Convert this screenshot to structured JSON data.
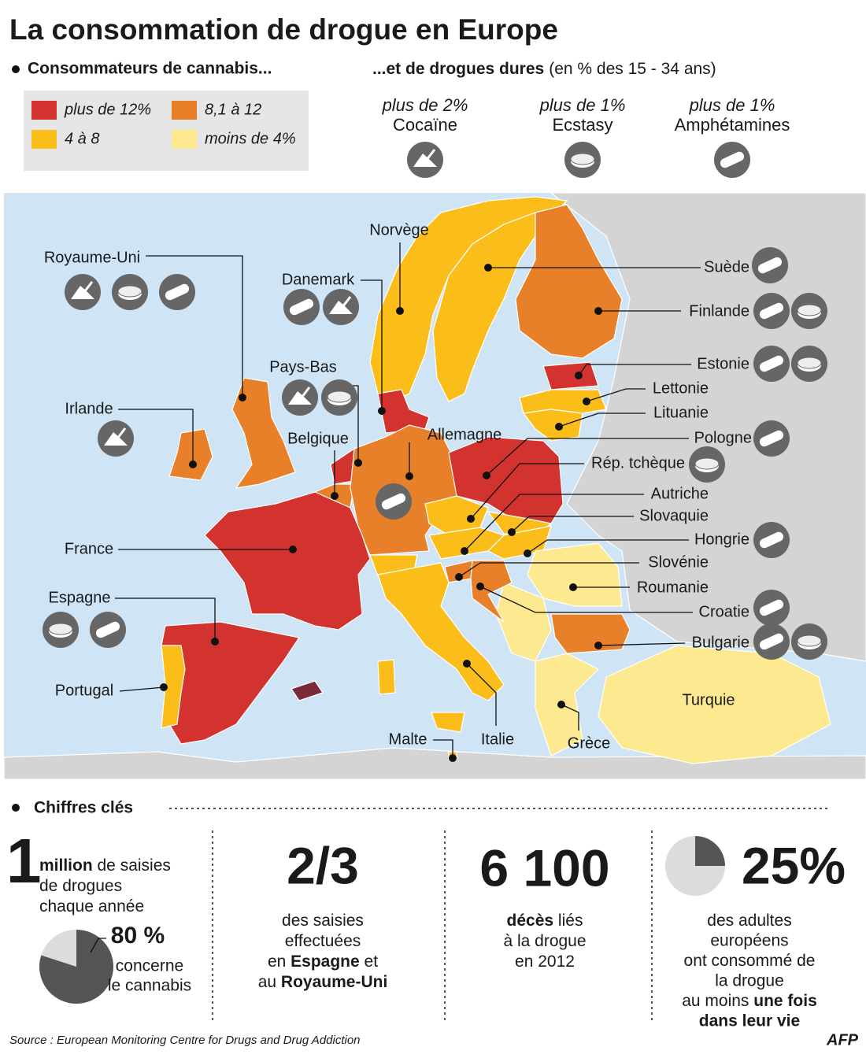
{
  "title": "La consommation de drogue en Europe",
  "cannabis_heading": "Consommateurs de cannabis...",
  "hard_drugs_heading": {
    "bold": "...et de drogues dures",
    "note": "(en % des 15 - 34 ans)"
  },
  "legend": [
    {
      "label": "plus de 12%",
      "color": "#d2332e"
    },
    {
      "label": "8,1 à 12",
      "color": "#e8802a"
    },
    {
      "label": "4 à 8",
      "color": "#fbbd1a"
    },
    {
      "label": "moins de 4%",
      "color": "#fde98f"
    }
  ],
  "drugs": [
    {
      "threshold": "plus de 2%",
      "name": "Cocaïne"
    },
    {
      "threshold": "plus de 1%",
      "name": "Ecstasy"
    },
    {
      "threshold": "plus de 1%",
      "name": "Amphétamines"
    }
  ],
  "countries": [
    {
      "name": "Royaume-Uni"
    },
    {
      "name": "Irlande"
    },
    {
      "name": "Norvège"
    },
    {
      "name": "Danemark"
    },
    {
      "name": "Pays-Bas"
    },
    {
      "name": "Belgique"
    },
    {
      "name": "Allemagne"
    },
    {
      "name": "Suède"
    },
    {
      "name": "Finlande"
    },
    {
      "name": "Estonie"
    },
    {
      "name": "Lettonie"
    },
    {
      "name": "Lituanie"
    },
    {
      "name": "Pologne"
    },
    {
      "name": "Rép. tchèque"
    },
    {
      "name": "Autriche"
    },
    {
      "name": "Slovaquie"
    },
    {
      "name": "Hongrie"
    },
    {
      "name": "Slovénie"
    },
    {
      "name": "Roumanie"
    },
    {
      "name": "Croatie"
    },
    {
      "name": "Bulgarie"
    },
    {
      "name": "Turquie"
    },
    {
      "name": "Grèce"
    },
    {
      "name": "Italie"
    },
    {
      "name": "Malte"
    },
    {
      "name": "France"
    },
    {
      "name": "Espagne"
    },
    {
      "name": "Portugal"
    }
  ],
  "key_figures": {
    "heading": "Chiffres clés",
    "figures": [
      {
        "number": "1",
        "lines": [
          [
            {
              "text": "million",
              "bold": true
            },
            {
              "text": " de saisies",
              "bold": false
            }
          ],
          [
            {
              "text": "de drogues",
              "bold": false
            }
          ],
          [
            {
              "text": "chaque année",
              "bold": false
            }
          ]
        ],
        "pie": {
          "value": 80,
          "label": "80 %"
        },
        "pie_caption": [
          "concerne",
          "le cannabis"
        ]
      },
      {
        "number": "2/3",
        "lines": [
          [
            {
              "text": "des saisies",
              "bold": false
            }
          ],
          [
            {
              "text": "effectuées",
              "bold": false
            }
          ],
          [
            {
              "text": "en ",
              "bold": false
            },
            {
              "text": "Espagne",
              "bold": true
            },
            {
              "text": " et",
              "bold": false
            }
          ],
          [
            {
              "text": "au ",
              "bold": false
            },
            {
              "text": "Royaume-Uni",
              "bold": true
            }
          ]
        ]
      },
      {
        "number": "6 100",
        "lines": [
          [
            {
              "text": "décès",
              "bold": true
            },
            {
              "text": " liés",
              "bold": false
            }
          ],
          [
            {
              "text": "à la drogue",
              "bold": false
            }
          ],
          [
            {
              "text": "en 2012",
              "bold": false
            }
          ]
        ]
      },
      {
        "pie": {
          "value": 25,
          "label": "25%"
        },
        "lines": [
          [
            {
              "text": "des adultes",
              "bold": false
            }
          ],
          [
            {
              "text": "européens",
              "bold": false
            }
          ],
          [
            {
              "text": "ont consommé de",
              "bold": false
            }
          ],
          [
            {
              "text": "la drogue",
              "bold": false
            }
          ],
          [
            {
              "text": "au moins ",
              "bold": false
            },
            {
              "text": "une fois",
              "bold": true
            }
          ],
          [
            {
              "text": "dans leur vie",
              "bold": true
            }
          ]
        ]
      }
    ]
  },
  "source": "Source : European Monitoring Centre for Drugs and Drug Addiction",
  "credit": "AFP"
}
